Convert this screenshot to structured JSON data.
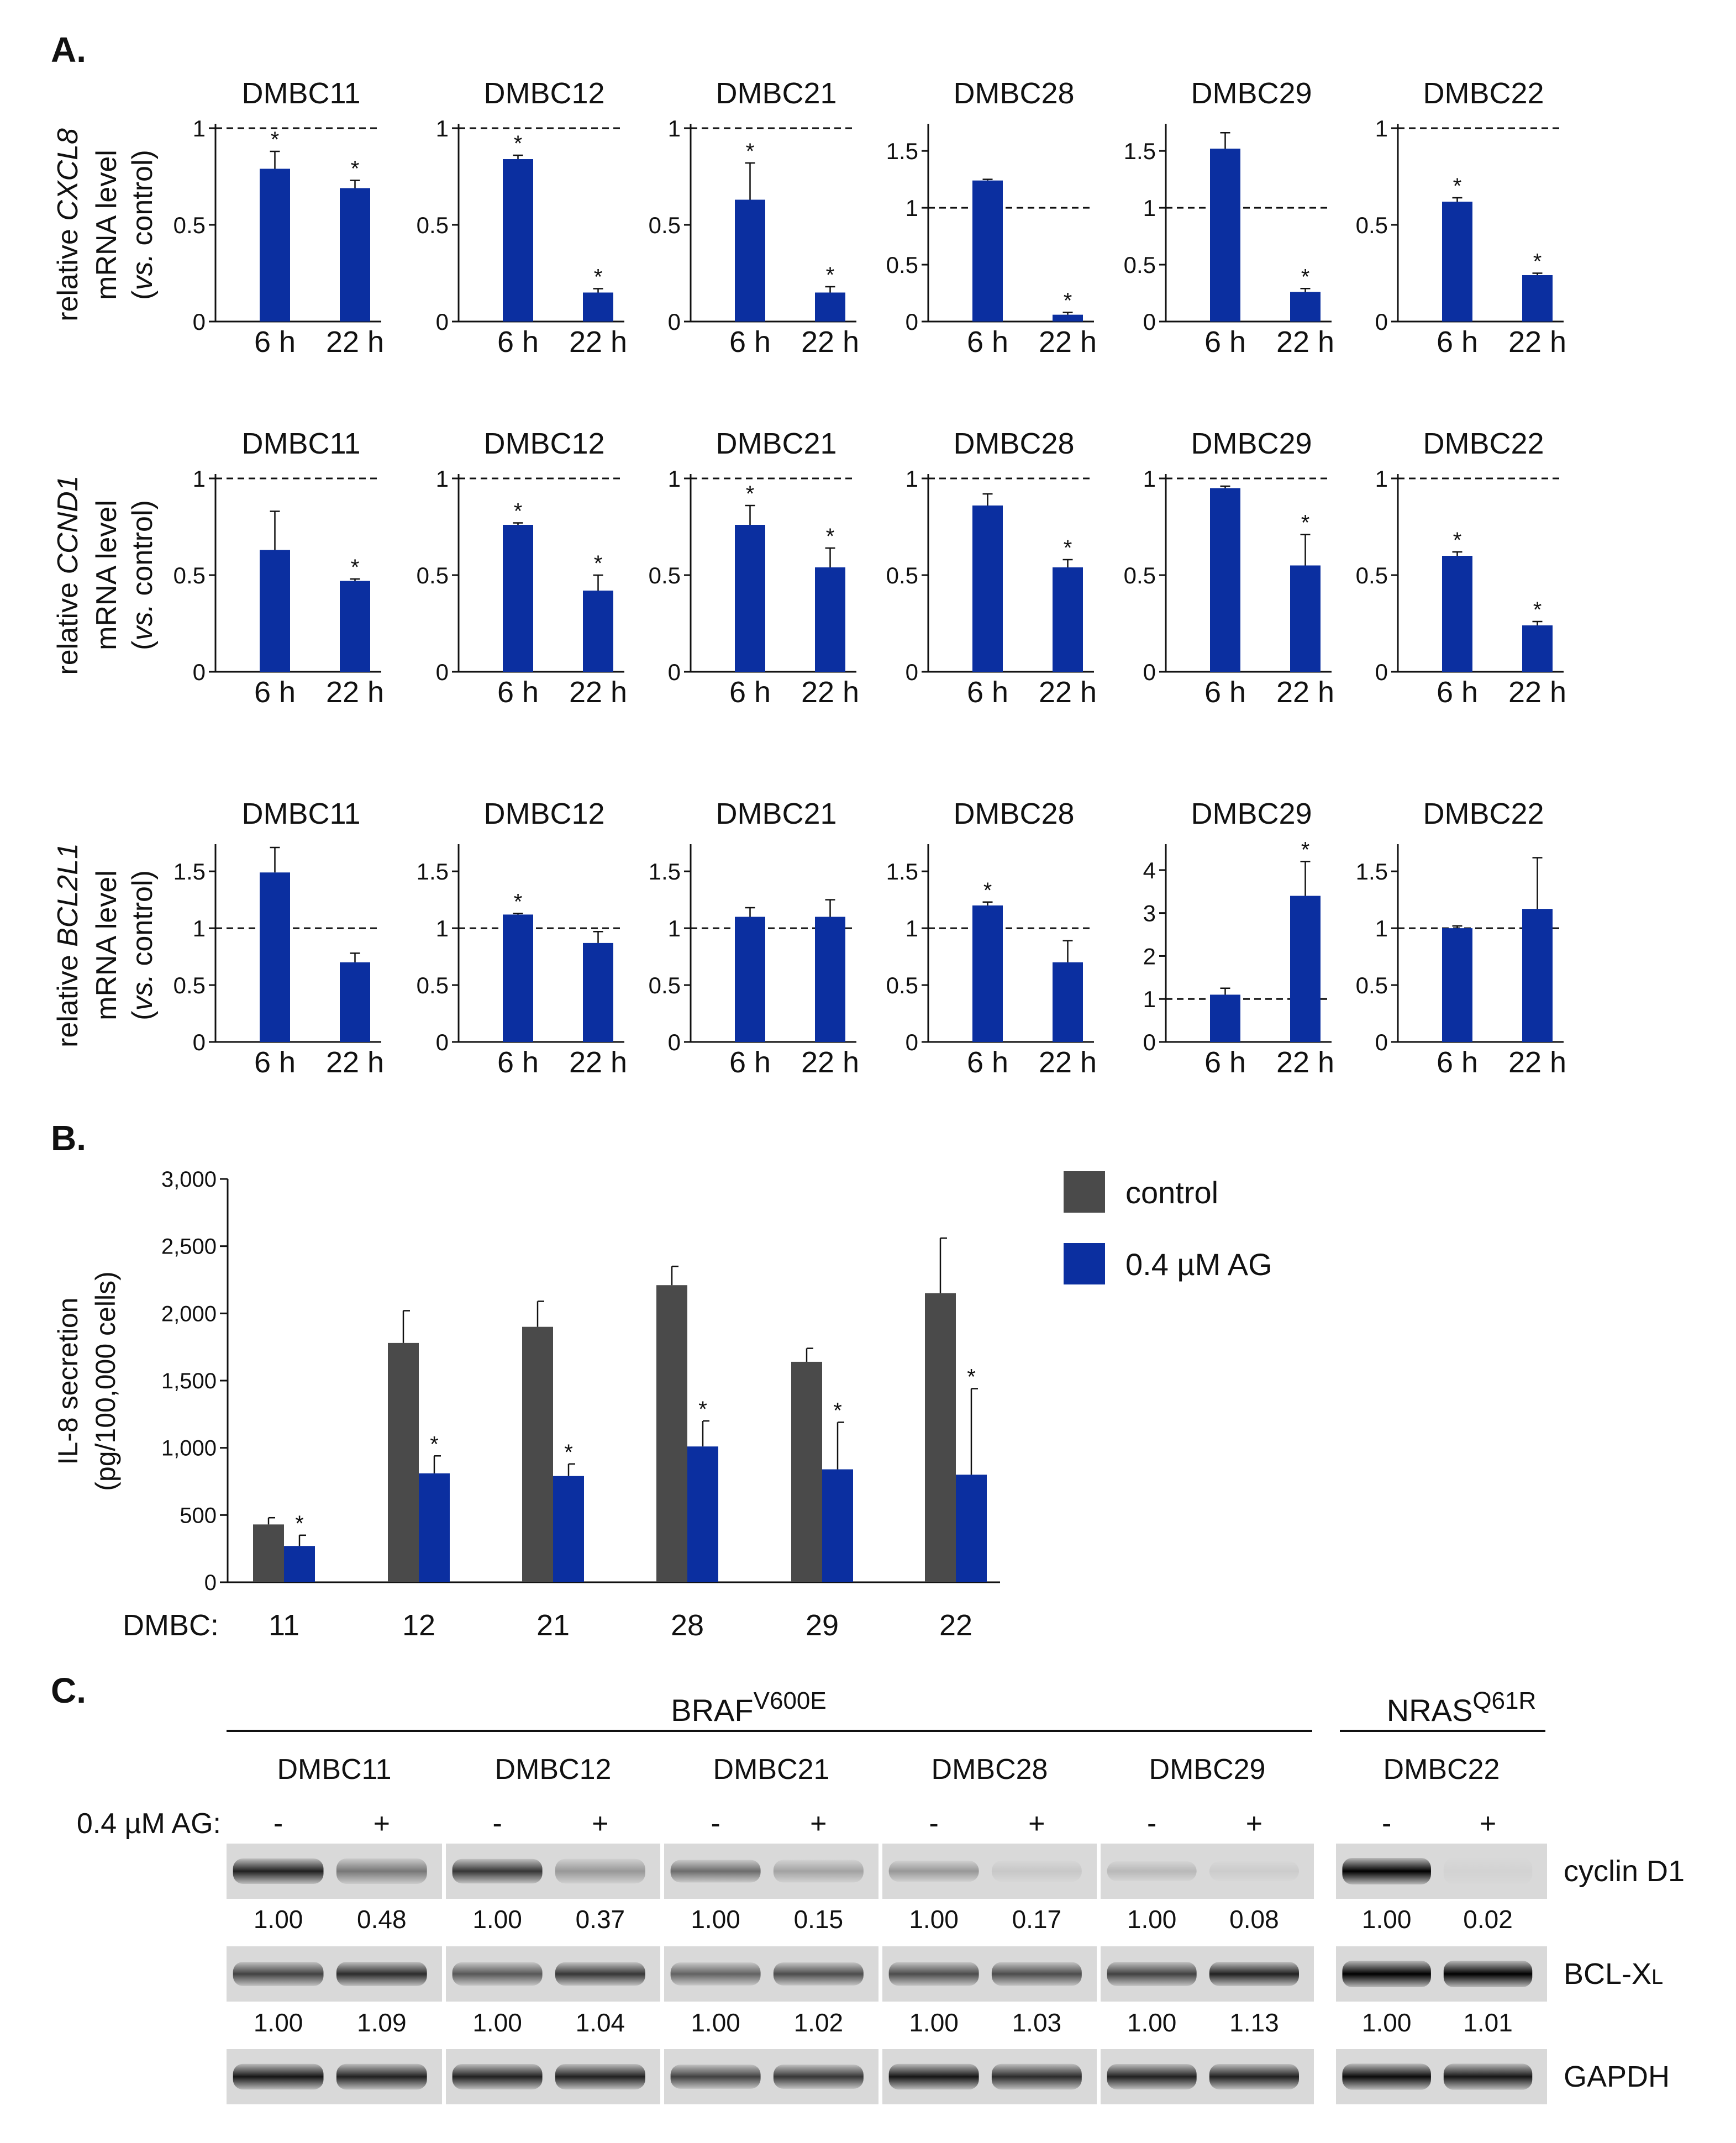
{
  "colors": {
    "blue": "#0b2fa0",
    "gray": "#4a4a4a",
    "axis": "#111111"
  },
  "panels": {
    "a": "A.",
    "b": "B.",
    "c": "C."
  },
  "panel_a": {
    "rows": [
      {
        "ylabel": [
          "relative ",
          "CXCL8",
          " mRNA level",
          "(",
          "vs.",
          " control)"
        ],
        "charts": [
          {
            "title": "DMBC11",
            "ymax": 1,
            "ticks": [
              0,
              0.5,
              1
            ],
            "tick_labels": [
              "0",
              "0.5",
              "1"
            ],
            "ref": 1,
            "values": [
              0.79,
              0.69
            ],
            "errors": [
              0.09,
              0.04
            ],
            "stars": [
              true,
              true
            ]
          },
          {
            "title": "DMBC12",
            "ymax": 1,
            "ticks": [
              0,
              0.5,
              1
            ],
            "tick_labels": [
              "0",
              "0.5",
              "1"
            ],
            "ref": 1,
            "values": [
              0.84,
              0.15
            ],
            "errors": [
              0.02,
              0.02
            ],
            "stars": [
              true,
              true
            ]
          },
          {
            "title": "DMBC21",
            "ymax": 1,
            "ticks": [
              0,
              0.5,
              1
            ],
            "tick_labels": [
              "0",
              "0.5",
              "1"
            ],
            "ref": 1,
            "values": [
              0.63,
              0.15
            ],
            "errors": [
              0.19,
              0.03
            ],
            "stars": [
              true,
              true
            ]
          },
          {
            "title": "DMBC28",
            "ymax": 1.7,
            "ticks": [
              0,
              0.5,
              1,
              1.5
            ],
            "tick_labels": [
              "0",
              "0.5",
              "1",
              "1.5"
            ],
            "ref": 1,
            "values": [
              1.24,
              0.06
            ],
            "errors": [
              0.01,
              0.02
            ],
            "stars": [
              false,
              true
            ]
          },
          {
            "title": "DMBC29",
            "ymax": 1.7,
            "ticks": [
              0,
              0.5,
              1,
              1.5
            ],
            "tick_labels": [
              "0",
              "0.5",
              "1",
              "1.5"
            ],
            "ref": 1,
            "values": [
              1.52,
              0.26
            ],
            "errors": [
              0.14,
              0.03
            ],
            "stars": [
              false,
              true
            ]
          },
          {
            "title": "DMBC22",
            "ymax": 1,
            "ticks": [
              0,
              0.5,
              1
            ],
            "tick_labels": [
              "0",
              "0.5",
              "1"
            ],
            "ref": 1,
            "values": [
              0.62,
              0.24
            ],
            "errors": [
              0.02,
              0.01
            ],
            "stars": [
              true,
              true
            ]
          }
        ]
      },
      {
        "ylabel": [
          "relative ",
          "CCND1",
          " mRNA level",
          "(",
          "vs.",
          " control)"
        ],
        "charts": [
          {
            "title": "DMBC11",
            "ymax": 1,
            "ticks": [
              0,
              0.5,
              1
            ],
            "tick_labels": [
              "0",
              "0.5",
              "1"
            ],
            "ref": 1,
            "values": [
              0.63,
              0.47
            ],
            "errors": [
              0.2,
              0.01
            ],
            "stars": [
              false,
              true
            ]
          },
          {
            "title": "DMBC12",
            "ymax": 1,
            "ticks": [
              0,
              0.5,
              1
            ],
            "tick_labels": [
              "0",
              "0.5",
              "1"
            ],
            "ref": 1,
            "values": [
              0.76,
              0.42
            ],
            "errors": [
              0.01,
              0.08
            ],
            "stars": [
              true,
              true
            ]
          },
          {
            "title": "DMBC21",
            "ymax": 1,
            "ticks": [
              0,
              0.5,
              1
            ],
            "tick_labels": [
              "0",
              "0.5",
              "1"
            ],
            "ref": 1,
            "values": [
              0.76,
              0.54
            ],
            "errors": [
              0.1,
              0.1
            ],
            "stars": [
              true,
              true
            ]
          },
          {
            "title": "DMBC28",
            "ymax": 1,
            "ticks": [
              0,
              0.5,
              1
            ],
            "tick_labels": [
              "0",
              "0.5",
              "1"
            ],
            "ref": 1,
            "values": [
              0.86,
              0.54
            ],
            "errors": [
              0.06,
              0.04
            ],
            "stars": [
              false,
              true
            ]
          },
          {
            "title": "DMBC29",
            "ymax": 1,
            "ticks": [
              0,
              0.5,
              1
            ],
            "tick_labels": [
              "0",
              "0.5",
              "1"
            ],
            "ref": 1,
            "values": [
              0.95,
              0.55
            ],
            "errors": [
              0.01,
              0.16
            ],
            "stars": [
              false,
              true
            ]
          },
          {
            "title": "DMBC22",
            "ymax": 1,
            "ticks": [
              0,
              0.5,
              1
            ],
            "tick_labels": [
              "0",
              "0.5",
              "1"
            ],
            "ref": 1,
            "values": [
              0.6,
              0.24
            ],
            "errors": [
              0.02,
              0.02
            ],
            "stars": [
              true,
              true
            ]
          }
        ]
      },
      {
        "ylabel": [
          "relative ",
          "BCL2L1",
          " mRNA level",
          "(",
          "vs.",
          " control)"
        ],
        "charts": [
          {
            "title": "DMBC11",
            "ymax": 1.7,
            "ticks": [
              0,
              0.5,
              1,
              1.5
            ],
            "tick_labels": [
              "0",
              "0.5",
              "1",
              "1.5"
            ],
            "ref": 1,
            "values": [
              1.49,
              0.7
            ],
            "errors": [
              0.22,
              0.08
            ],
            "stars": [
              false,
              false
            ]
          },
          {
            "title": "DMBC12",
            "ymax": 1.7,
            "ticks": [
              0,
              0.5,
              1,
              1.5
            ],
            "tick_labels": [
              "0",
              "0.5",
              "1",
              "1.5"
            ],
            "ref": 1,
            "values": [
              1.12,
              0.87
            ],
            "errors": [
              0.01,
              0.1
            ],
            "stars": [
              true,
              false
            ]
          },
          {
            "title": "DMBC21",
            "ymax": 1.7,
            "ticks": [
              0,
              0.5,
              1,
              1.5
            ],
            "tick_labels": [
              "0",
              "0.5",
              "1",
              "1.5"
            ],
            "ref": 1,
            "values": [
              1.1,
              1.1
            ],
            "errors": [
              0.08,
              0.15
            ],
            "stars": [
              false,
              false
            ]
          },
          {
            "title": "DMBC28",
            "ymax": 1.7,
            "ticks": [
              0,
              0.5,
              1,
              1.5
            ],
            "tick_labels": [
              "0",
              "0.5",
              "1",
              "1.5"
            ],
            "ref": 1,
            "values": [
              1.2,
              0.7
            ],
            "errors": [
              0.03,
              0.19
            ],
            "stars": [
              true,
              false
            ]
          },
          {
            "title": "DMBC29",
            "ymax": 4.5,
            "ticks": [
              0,
              1,
              2,
              3,
              4
            ],
            "tick_labels": [
              "0",
              "1",
              "2",
              "3",
              "4"
            ],
            "ref": 1,
            "values": [
              1.1,
              3.4
            ],
            "errors": [
              0.15,
              0.8
            ],
            "stars": [
              false,
              true
            ]
          },
          {
            "title": "DMBC22",
            "ymax": 1.7,
            "ticks": [
              0,
              0.5,
              1,
              1.5
            ],
            "tick_labels": [
              "0",
              "0.5",
              "1",
              "1.5"
            ],
            "ref": 1,
            "values": [
              1.0,
              1.17
            ],
            "errors": [
              0.02,
              0.45
            ],
            "stars": [
              false,
              false
            ]
          }
        ]
      }
    ],
    "x_categories": [
      "6 h",
      "22 h"
    ],
    "star": "*"
  },
  "chart_data": {
    "type": "bar",
    "ylabel": [
      "IL-8 secretion",
      "(pg/100,000 cells)"
    ],
    "xprefix": "DMBC:",
    "categories": [
      "11",
      "12",
      "21",
      "28",
      "29",
      "22"
    ],
    "ylim": [
      0,
      3000
    ],
    "ticks": [
      0,
      500,
      1000,
      1500,
      2000,
      2500,
      3000
    ],
    "tick_labels": [
      "0",
      "500",
      "1,000",
      "1,500",
      "2,000",
      "2,500",
      "3,000"
    ],
    "series": [
      {
        "name": "control",
        "values": [
          430,
          1780,
          1900,
          2210,
          1640,
          2150
        ],
        "errors": [
          50,
          240,
          190,
          140,
          100,
          410
        ],
        "stars": [
          false,
          false,
          false,
          false,
          false,
          false
        ]
      },
      {
        "name": "0.4 µM AG",
        "values": [
          270,
          810,
          790,
          1010,
          840,
          800
        ],
        "errors": [
          80,
          130,
          90,
          190,
          350,
          640
        ],
        "stars": [
          true,
          true,
          true,
          true,
          true,
          true
        ]
      }
    ],
    "legend_position": "top-right",
    "star": "*"
  },
  "panel_c": {
    "braf_label": "BRAF",
    "braf_sup": "V600E",
    "nras_label": "NRAS",
    "nras_sup": "Q61R",
    "treatment_label": "0.4 µM AG:",
    "minus": "-",
    "plus": "+",
    "cell_lines": [
      "DMBC11",
      "DMBC12",
      "DMBC21",
      "DMBC28",
      "DMBC29",
      "DMBC22"
    ],
    "blots": [
      {
        "label": "cyclin D1",
        "label_sub": "",
        "intensity": [
          [
            0.85,
            0.45
          ],
          [
            0.75,
            0.3
          ],
          [
            0.5,
            0.25
          ],
          [
            0.3,
            0.08
          ],
          [
            0.15,
            0.06
          ],
          [
            1.0,
            0.02
          ]
        ]
      },
      {
        "label": "BCL-X",
        "label_sub": "L",
        "intensity": [
          [
            0.7,
            0.8
          ],
          [
            0.6,
            0.75
          ],
          [
            0.55,
            0.65
          ],
          [
            0.65,
            0.65
          ],
          [
            0.7,
            0.85
          ],
          [
            1.0,
            1.0
          ]
        ]
      },
      {
        "label": "GAPDH",
        "label_sub": "",
        "intensity": [
          [
            0.9,
            0.85
          ],
          [
            0.85,
            0.85
          ],
          [
            0.7,
            0.75
          ],
          [
            0.9,
            0.8
          ],
          [
            0.85,
            0.85
          ],
          [
            0.95,
            0.9
          ]
        ]
      }
    ],
    "quant_rows": [
      [
        [
          "1.00",
          "0.48"
        ],
        [
          "1.00",
          "0.37"
        ],
        [
          "1.00",
          "0.15"
        ],
        [
          "1.00",
          "0.17"
        ],
        [
          "1.00",
          "0.08"
        ],
        [
          "1.00",
          "0.02"
        ]
      ],
      [
        [
          "1.00",
          "1.09"
        ],
        [
          "1.00",
          "1.04"
        ],
        [
          "1.00",
          "1.02"
        ],
        [
          "1.00",
          "1.03"
        ],
        [
          "1.00",
          "1.13"
        ],
        [
          "1.00",
          "1.01"
        ]
      ]
    ]
  }
}
